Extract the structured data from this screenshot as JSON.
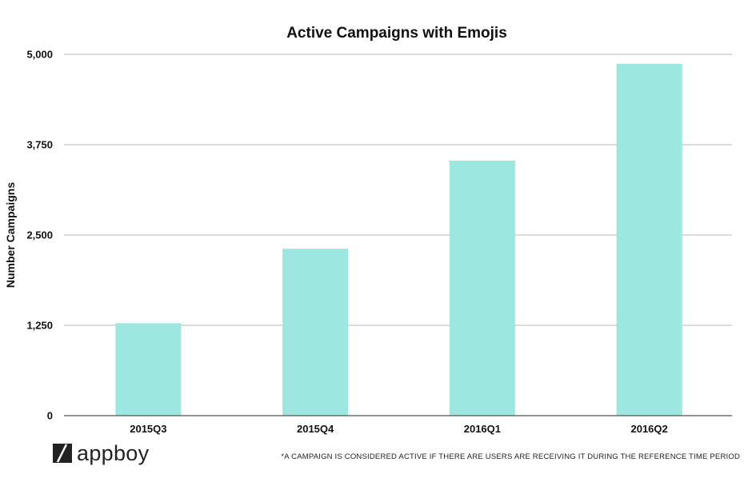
{
  "chart_data": {
    "type": "bar",
    "title": "Active Campaigns with Emojis",
    "xlabel": "",
    "ylabel": "Number Campaigns",
    "categories": [
      "2015Q3",
      "2015Q4",
      "2016Q1",
      "2016Q2"
    ],
    "values": [
      1280,
      2310,
      3530,
      4870
    ],
    "ylim": [
      0,
      5000
    ],
    "yticks": [
      "0",
      "1,250",
      "2,500",
      "3,750",
      "5,000"
    ],
    "ytick_values": [
      0,
      1250,
      2500,
      3750,
      5000
    ],
    "grid": true,
    "bar_color": "#9ce8e1"
  },
  "footnote": "*A CAMPAIGN IS CONSIDERED ACTIVE IF THERE ARE USERS ARE RECEIVING IT DURING THE REFERENCE TIME PERIOD",
  "brand": {
    "name": "appboy",
    "icon": "appboy-logo-icon"
  }
}
